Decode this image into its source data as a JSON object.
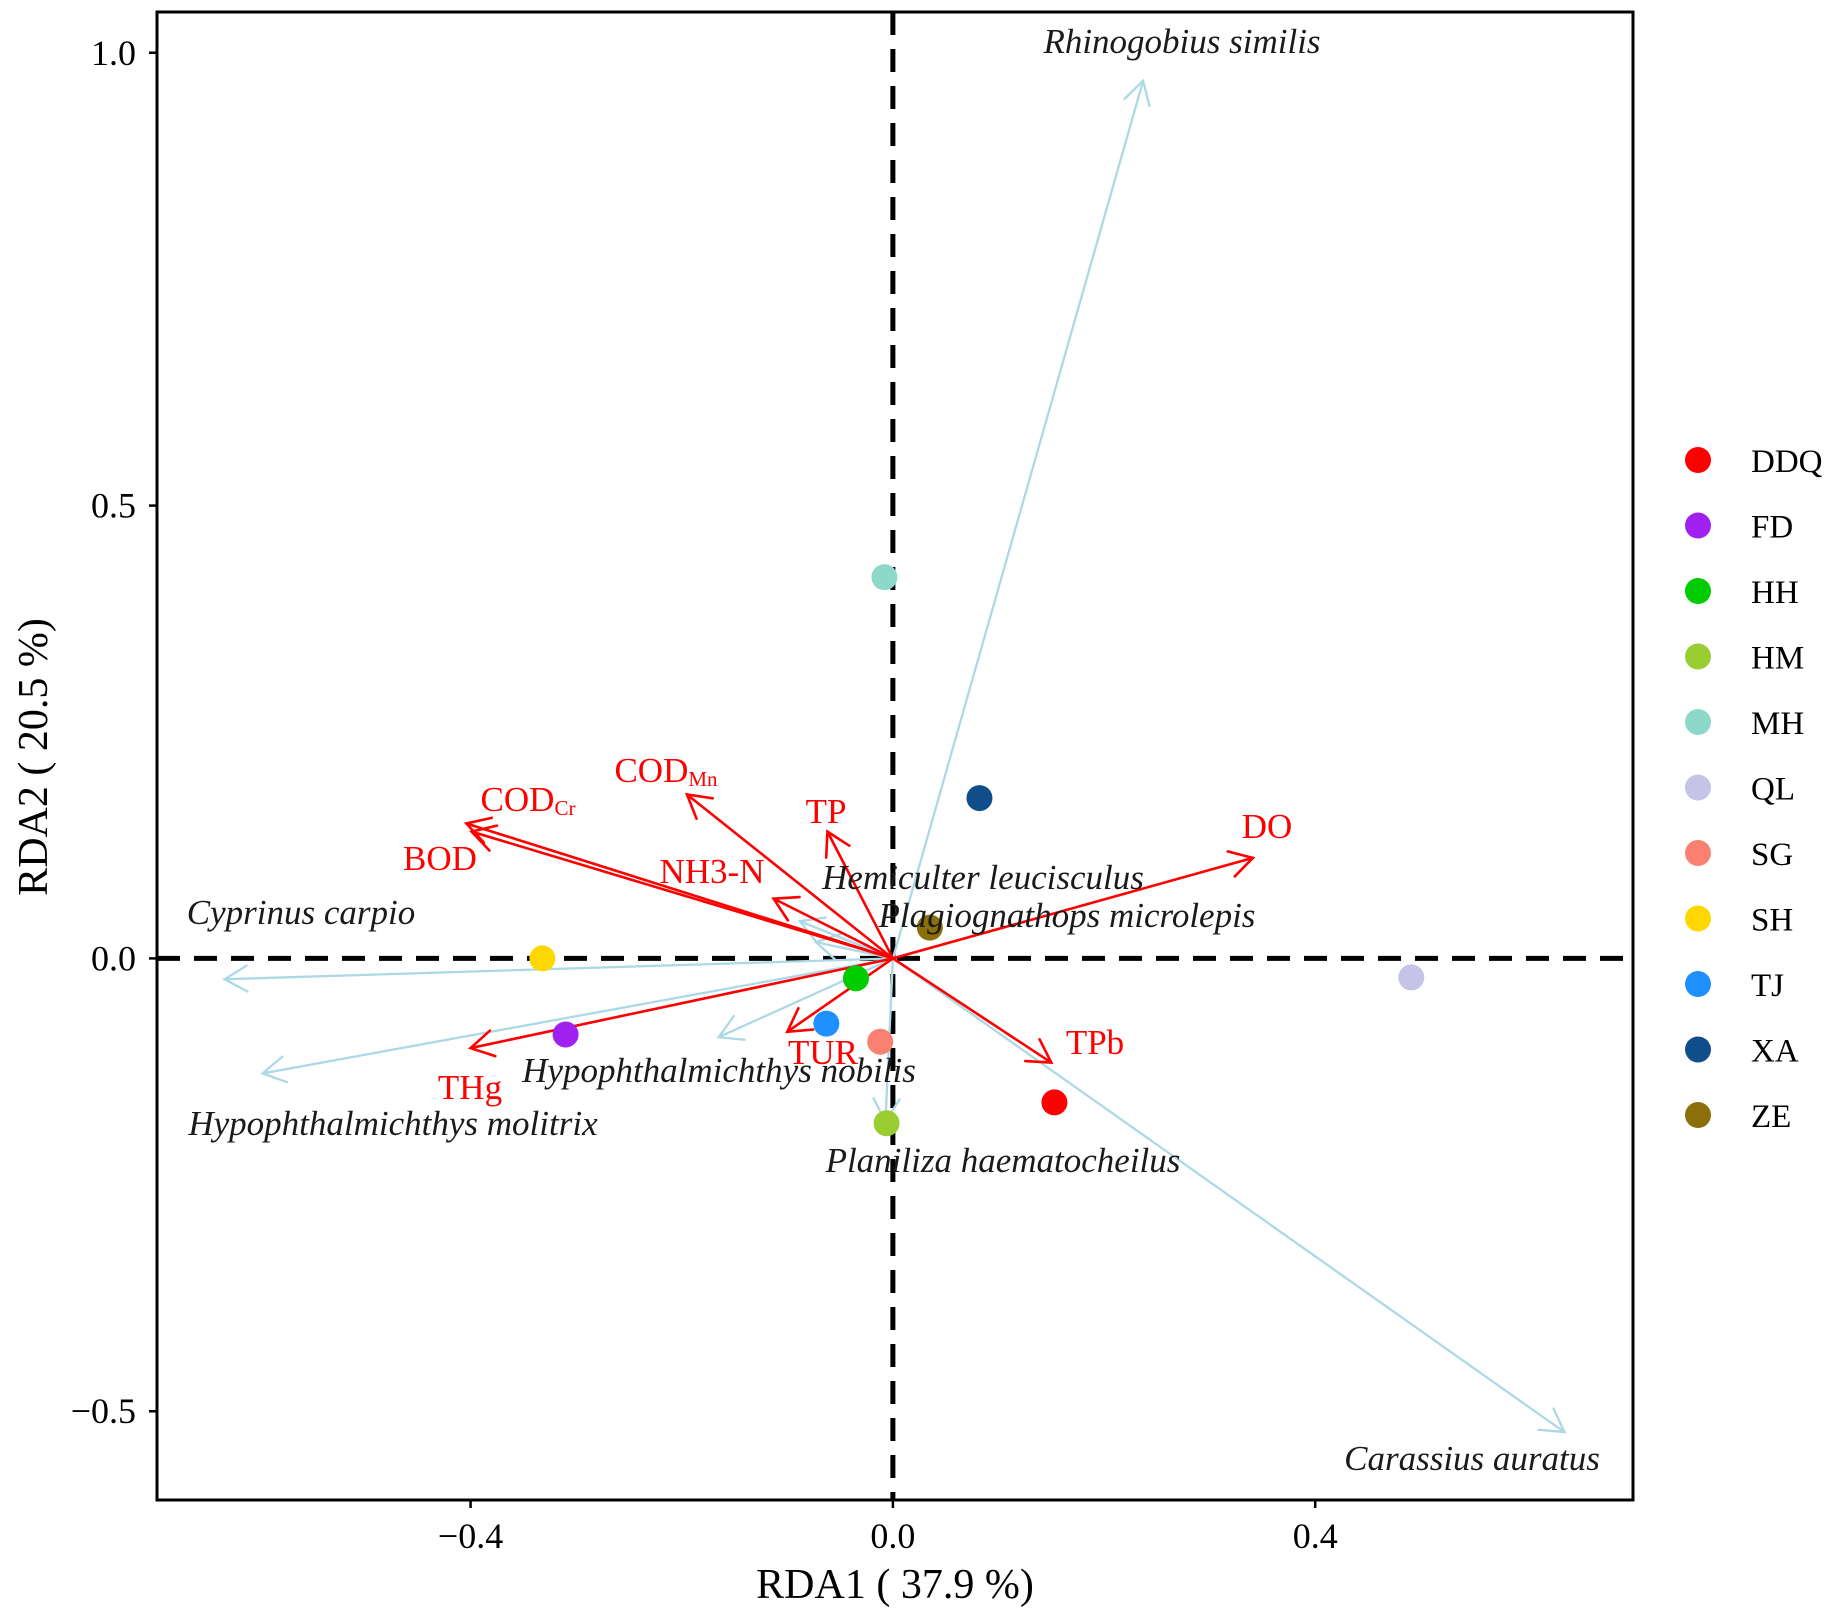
{
  "chart_data": {
    "type": "scatter",
    "subtype": "rda-biplot",
    "xlabel": "RDA1 ( 37.9 %)",
    "ylabel": "RDA2 ( 20.5 %)",
    "xlim": [
      -0.697,
      0.701
    ],
    "ylim": [
      -0.598,
      1.045
    ],
    "grid": false,
    "reference_lines": {
      "x": 0,
      "y": 0,
      "style": "dashed"
    },
    "x_ticks": [
      {
        "value": -0.4,
        "label": "−0.4"
      },
      {
        "value": 0.0,
        "label": "0.0"
      },
      {
        "value": 0.4,
        "label": "0.4"
      }
    ],
    "y_ticks": [
      {
        "value": -0.5,
        "label": "−0.5"
      },
      {
        "value": 0.0,
        "label": "0.0"
      },
      {
        "value": 0.5,
        "label": "0.5"
      },
      {
        "value": 1.0,
        "label": "1.0"
      }
    ],
    "legend_position": "right",
    "sites": [
      {
        "name": "DDQ",
        "color": "#FF0000",
        "x": 0.153,
        "y": -0.159
      },
      {
        "name": "FD",
        "color": "#A020F0",
        "x": -0.31,
        "y": -0.084
      },
      {
        "name": "HH",
        "color": "#00CC00",
        "x": -0.035,
        "y": -0.022
      },
      {
        "name": "HM",
        "color": "#9ACD32",
        "x": -0.006,
        "y": -0.182
      },
      {
        "name": "MH",
        "color": "#8ED8C9",
        "x": -0.008,
        "y": 0.421
      },
      {
        "name": "QL",
        "color": "#C5C3E6",
        "x": 0.491,
        "y": -0.021
      },
      {
        "name": "SG",
        "color": "#FA8072",
        "x": -0.012,
        "y": -0.092
      },
      {
        "name": "SH",
        "color": "#FFD700",
        "x": -0.332,
        "y": 0.0
      },
      {
        "name": "TJ",
        "color": "#1E90FF",
        "x": -0.063,
        "y": -0.072
      },
      {
        "name": "XA",
        "color": "#104E8B",
        "x": 0.082,
        "y": 0.177
      },
      {
        "name": "ZE",
        "color": "#8B7009",
        "x": 0.035,
        "y": 0.034
      }
    ],
    "environment_arrows": [
      {
        "name": "COD",
        "subscript": "Cr",
        "x": -0.404,
        "y": 0.149
      },
      {
        "name": "BOD",
        "x": -0.399,
        "y": 0.14
      },
      {
        "name": "COD",
        "subscript": "Mn",
        "x": -0.195,
        "y": 0.181
      },
      {
        "name": "TP",
        "x": -0.062,
        "y": 0.14
      },
      {
        "name": "NH3-N",
        "x": -0.113,
        "y": 0.066
      },
      {
        "name": "DO",
        "x": 0.341,
        "y": 0.111
      },
      {
        "name": "TPb",
        "x": 0.15,
        "y": -0.115
      },
      {
        "name": "TUR",
        "x": -0.1,
        "y": -0.081
      },
      {
        "name": "THg",
        "x": -0.4,
        "y": -0.099
      }
    ],
    "species_arrows": [
      {
        "name": "Rhinogobius similis",
        "x": 0.237,
        "y": 0.969
      },
      {
        "name": "Carassius auratus",
        "x": 0.636,
        "y": -0.523
      },
      {
        "name": "Cyprinus carpio",
        "x": -0.633,
        "y": -0.023
      },
      {
        "name": "Hypophthalmichthys molitrix",
        "x": -0.597,
        "y": -0.127
      },
      {
        "name": "Hypophthalmichthys nobilis",
        "x": -0.165,
        "y": -0.087
      },
      {
        "name": "Planiliza haematocheilus",
        "x": -0.007,
        "y": -0.18
      },
      {
        "name": "Hemiculter leucisculus",
        "x": -0.088,
        "y": 0.041
      },
      {
        "name": "Plagiognathops microlepis",
        "x": -0.073,
        "y": 0.018
      }
    ]
  },
  "colors": {
    "environment_arrow": "#FF0000",
    "species_arrow": "#ADD8E6",
    "reference_line": "#000000",
    "panel_border": "#000000"
  }
}
